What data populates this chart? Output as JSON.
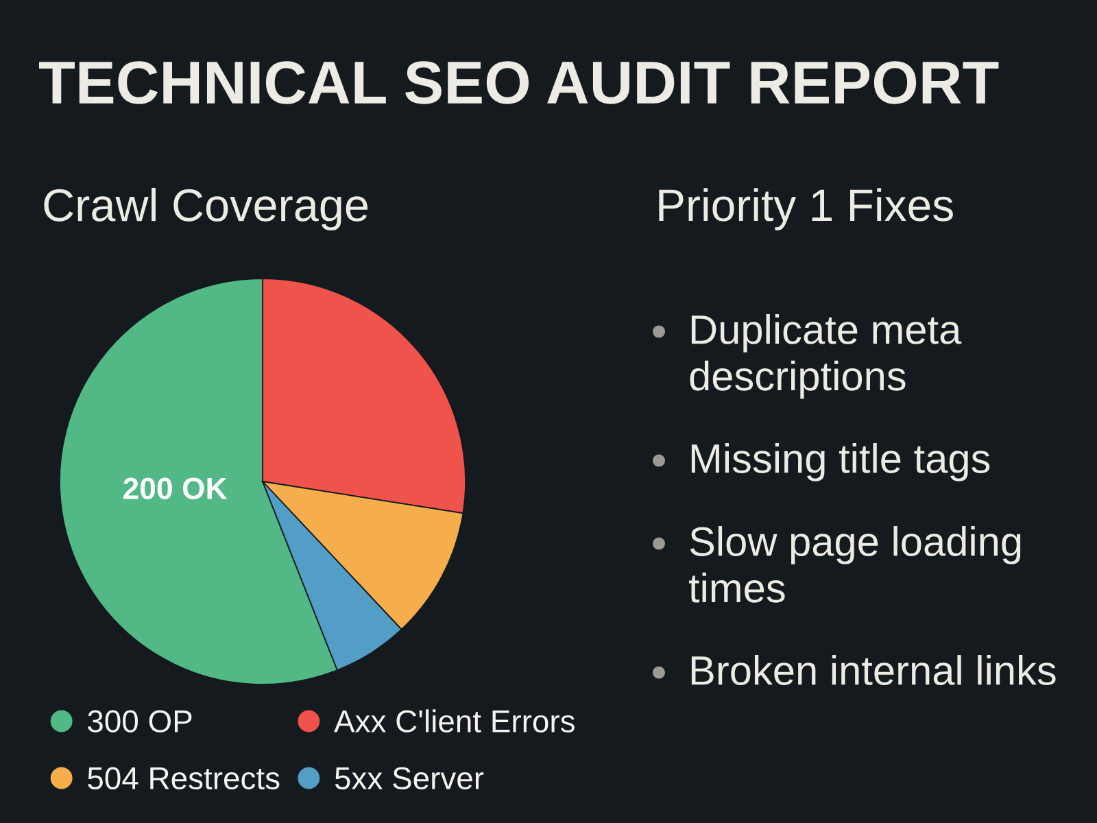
{
  "chart_data": [
    {
      "type": "other",
      "title": "TECHNICAL SEO AUDIT REPORT"
    },
    {
      "type": "pie",
      "title": "Crawl Coverage",
      "categories": [
        "300 OP",
        "Axx C'lient Errors",
        "504 Restrects",
        "5xx Server"
      ],
      "values": [
        56,
        27.5,
        10.5,
        6
      ],
      "colors": [
        "#52b886",
        "#f0524c",
        "#f5ae4b",
        "#529ec6"
      ],
      "annotations": [
        "200 OK"
      ],
      "legend": "bottom"
    },
    {
      "type": "other",
      "title": "Priority 1 Fixes",
      "annotations": [
        "Duplicate meta descriptions",
        "Missing title tags",
        "Slow page loading times",
        "Broken internal links"
      ]
    }
  ]
}
